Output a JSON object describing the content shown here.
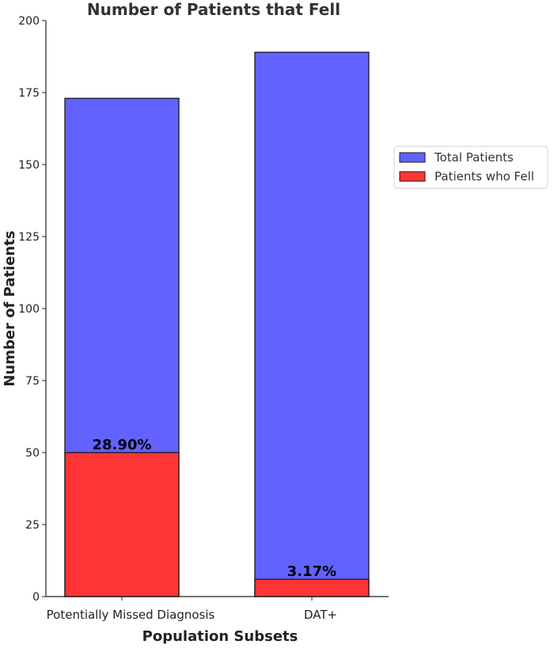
{
  "chart_data": {
    "type": "bar",
    "title": "Number of Patients that Fell",
    "xlabel": "Population Subsets",
    "ylabel": "Number of Patients",
    "categories": [
      "Potentially Missed Diagnosis",
      "DAT+"
    ],
    "series": [
      {
        "name": "Total Patients",
        "values": [
          173,
          189
        ],
        "color": "#6262ff"
      },
      {
        "name": "Patients who Fell",
        "values": [
          50,
          6
        ],
        "color": "#ff3535"
      }
    ],
    "data_labels": [
      "28.90%",
      "3.17%"
    ],
    "ylim": [
      0,
      200
    ],
    "yticks": [
      0,
      25,
      50,
      75,
      100,
      125,
      150,
      175,
      200
    ],
    "grid": false,
    "legend_position": "right"
  }
}
